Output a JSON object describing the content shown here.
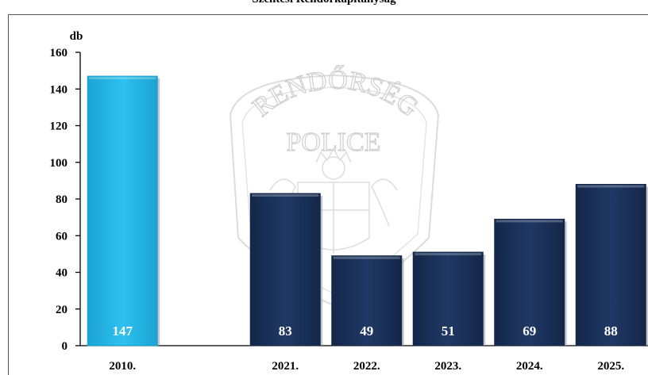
{
  "chart_data": {
    "type": "bar",
    "title": "Szentesi Rendőrkapitányság",
    "ylabel": "db",
    "xlabel": "",
    "categories": [
      "2010.",
      "",
      "2021.",
      "2022.",
      "2023.",
      "2024.",
      "2025."
    ],
    "values": [
      147,
      null,
      83,
      49,
      51,
      69,
      88
    ],
    "data_labels": [
      "147",
      "",
      "83",
      "49",
      "51",
      "69",
      "88"
    ],
    "ylim": [
      0,
      160
    ],
    "yticks": [
      "0",
      "20",
      "40",
      "60",
      "80",
      "100",
      "120",
      "140",
      "160"
    ],
    "grid": false,
    "legend": "none",
    "colors": {
      "highlight_bar": "#2ec1ef",
      "highlight_bar_dark": "#1ba3d3",
      "bar": "#1f3864",
      "bar_dark": "#14274a"
    }
  },
  "watermark": {
    "arc_text": "RENDŐRSÉG",
    "sub_text": "POLICE"
  }
}
